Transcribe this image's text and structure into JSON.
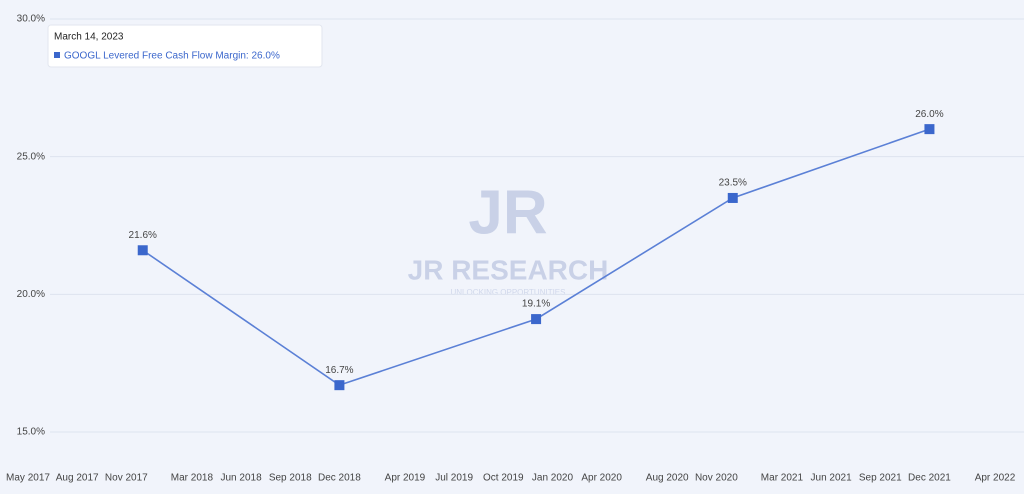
{
  "chart_data": {
    "type": "line",
    "x": [
      "2017-12",
      "2018-12",
      "2019-12",
      "2020-12",
      "2021-12"
    ],
    "xlim": [
      "2017-05",
      "2022-04"
    ],
    "xticks": [
      {
        "value": "2017-05",
        "label": "May 2017"
      },
      {
        "value": "2017-08",
        "label": "Aug 2017"
      },
      {
        "value": "2017-11",
        "label": "Nov 2017"
      },
      {
        "value": "2018-03",
        "label": "Mar 2018"
      },
      {
        "value": "2018-06",
        "label": "Jun 2018"
      },
      {
        "value": "2018-09",
        "label": "Sep 2018"
      },
      {
        "value": "2018-12",
        "label": "Dec 2018"
      },
      {
        "value": "2019-04",
        "label": "Apr 2019"
      },
      {
        "value": "2019-07",
        "label": "Jul 2019"
      },
      {
        "value": "2019-10",
        "label": "Oct 2019"
      },
      {
        "value": "2020-01",
        "label": "Jan 2020"
      },
      {
        "value": "2020-04",
        "label": "Apr 2020"
      },
      {
        "value": "2020-08",
        "label": "Aug 2020"
      },
      {
        "value": "2020-11",
        "label": "Nov 2020"
      },
      {
        "value": "2021-03",
        "label": "Mar 2021"
      },
      {
        "value": "2021-06",
        "label": "Jun 2021"
      },
      {
        "value": "2021-09",
        "label": "Sep 2021"
      },
      {
        "value": "2021-12",
        "label": "Dec 2021"
      },
      {
        "value": "2022-04",
        "label": "Apr 2022"
      }
    ],
    "series": [
      {
        "name": "GOOGL Levered Free Cash Flow Margin",
        "color": "#5b80d6",
        "marker_color": "#3b67cc",
        "values": [
          21.6,
          16.7,
          19.1,
          23.5,
          26.0
        ],
        "value_labels": [
          "21.6%",
          "16.7%",
          "19.1%",
          "23.5%",
          "26.0%"
        ]
      }
    ],
    "ylim": [
      14.2,
      30
    ],
    "yticks": [
      {
        "value": 15,
        "label": "15.0%"
      },
      {
        "value": 20,
        "label": "20.0%"
      },
      {
        "value": 25,
        "label": "25.0%"
      },
      {
        "value": 30,
        "label": "30.0%"
      }
    ],
    "grid": true,
    "tooltip": {
      "date": "March 14, 2023",
      "text": "GOOGL Levered Free Cash Flow Margin: 26.0%"
    },
    "watermark": {
      "logo": "JR",
      "title": "JR RESEARCH",
      "subtitle": "UNLOCKING OPPORTUNITIES"
    }
  }
}
